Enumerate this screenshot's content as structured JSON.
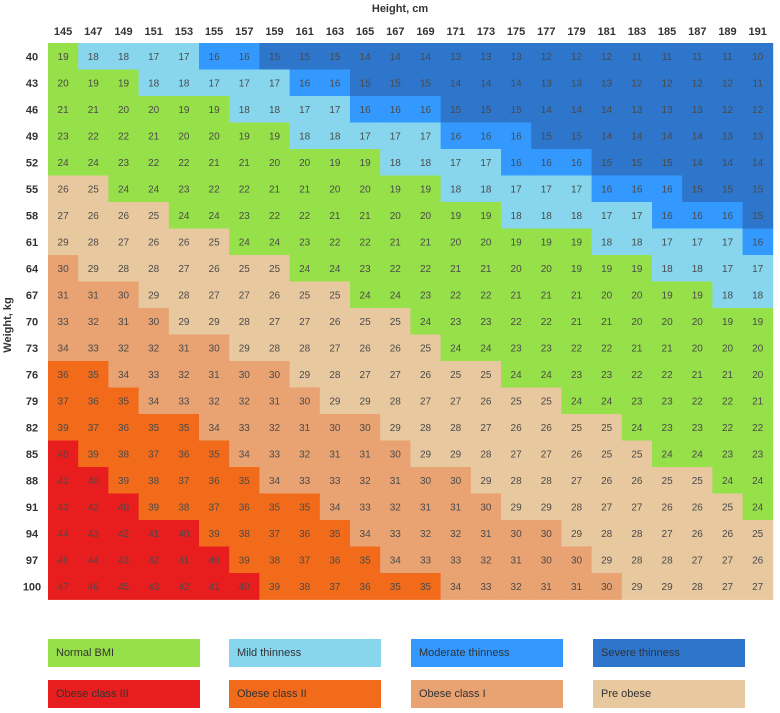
{
  "chart_data": {
    "type": "heatmap",
    "title": "",
    "xlabel": "Height, cm",
    "ylabel": "Weight, kg",
    "x": [
      145,
      147,
      149,
      151,
      153,
      155,
      157,
      159,
      161,
      163,
      165,
      167,
      169,
      171,
      173,
      175,
      177,
      179,
      181,
      183,
      185,
      187,
      189,
      191
    ],
    "y": [
      40,
      43,
      46,
      49,
      52,
      55,
      58,
      61,
      64,
      67,
      70,
      73,
      76,
      79,
      82,
      85,
      88,
      91,
      94,
      97,
      100
    ],
    "values": [
      [
        19,
        18,
        18,
        17,
        17,
        16,
        16,
        15,
        15,
        15,
        14,
        14,
        14,
        13,
        13,
        13,
        12,
        12,
        12,
        11,
        11,
        11,
        11,
        10
      ],
      [
        20,
        19,
        19,
        18,
        18,
        17,
        17,
        17,
        16,
        16,
        15,
        15,
        15,
        14,
        14,
        14,
        13,
        13,
        13,
        12,
        12,
        12,
        12,
        11
      ],
      [
        21,
        21,
        20,
        20,
        19,
        19,
        18,
        18,
        17,
        17,
        16,
        16,
        16,
        15,
        15,
        15,
        14,
        14,
        14,
        13,
        13,
        13,
        12,
        12
      ],
      [
        23,
        22,
        22,
        21,
        20,
        20,
        19,
        19,
        18,
        18,
        17,
        17,
        17,
        16,
        16,
        16,
        15,
        15,
        14,
        14,
        14,
        14,
        13,
        13
      ],
      [
        24,
        24,
        23,
        22,
        22,
        21,
        21,
        20,
        20,
        19,
        19,
        18,
        18,
        17,
        17,
        16,
        16,
        16,
        15,
        15,
        15,
        14,
        14,
        14
      ],
      [
        26,
        25,
        24,
        24,
        23,
        22,
        22,
        21,
        21,
        20,
        20,
        19,
        19,
        18,
        18,
        17,
        17,
        17,
        16,
        16,
        16,
        15,
        15,
        15
      ],
      [
        27,
        26,
        26,
        25,
        24,
        24,
        23,
        22,
        22,
        21,
        21,
        20,
        20,
        19,
        19,
        18,
        18,
        18,
        17,
        17,
        16,
        16,
        16,
        15
      ],
      [
        29,
        28,
        27,
        26,
        26,
        25,
        24,
        24,
        23,
        22,
        22,
        21,
        21,
        20,
        20,
        19,
        19,
        19,
        18,
        18,
        17,
        17,
        17,
        16
      ],
      [
        30,
        29,
        28,
        28,
        27,
        26,
        25,
        25,
        24,
        24,
        23,
        22,
        22,
        21,
        21,
        20,
        20,
        19,
        19,
        19,
        18,
        18,
        17,
        17
      ],
      [
        31,
        31,
        30,
        29,
        28,
        27,
        27,
        26,
        25,
        25,
        24,
        24,
        23,
        22,
        22,
        21,
        21,
        21,
        20,
        20,
        19,
        19,
        18,
        18
      ],
      [
        33,
        32,
        31,
        30,
        29,
        29,
        28,
        27,
        27,
        26,
        25,
        25,
        24,
        23,
        23,
        22,
        22,
        21,
        21,
        20,
        20,
        20,
        19,
        19
      ],
      [
        34,
        33,
        32,
        32,
        31,
        30,
        29,
        28,
        28,
        27,
        26,
        26,
        25,
        24,
        24,
        23,
        23,
        22,
        22,
        21,
        21,
        20,
        20,
        20
      ],
      [
        36,
        35,
        34,
        33,
        32,
        31,
        30,
        30,
        29,
        28,
        27,
        27,
        26,
        25,
        25,
        24,
        24,
        23,
        23,
        22,
        22,
        21,
        21,
        20
      ],
      [
        37,
        36,
        35,
        34,
        33,
        32,
        32,
        31,
        30,
        29,
        29,
        28,
        27,
        27,
        26,
        25,
        25,
        24,
        24,
        23,
        23,
        22,
        22,
        21
      ],
      [
        39,
        37,
        36,
        35,
        35,
        34,
        33,
        32,
        31,
        30,
        30,
        29,
        28,
        28,
        27,
        26,
        26,
        25,
        25,
        24,
        23,
        23,
        22,
        22
      ],
      [
        40,
        39,
        38,
        37,
        36,
        35,
        34,
        33,
        32,
        31,
        31,
        30,
        29,
        29,
        28,
        27,
        27,
        26,
        25,
        25,
        24,
        24,
        23,
        23
      ],
      [
        41,
        40,
        39,
        38,
        37,
        36,
        35,
        34,
        33,
        33,
        32,
        31,
        30,
        30,
        29,
        28,
        28,
        27,
        26,
        26,
        25,
        25,
        24,
        24
      ],
      [
        43,
        42,
        40,
        39,
        38,
        37,
        36,
        35,
        35,
        34,
        33,
        32,
        31,
        31,
        30,
        29,
        29,
        28,
        27,
        27,
        26,
        26,
        25,
        24
      ],
      [
        44,
        43,
        42,
        41,
        40,
        39,
        38,
        37,
        36,
        35,
        34,
        33,
        32,
        32,
        31,
        30,
        30,
        29,
        28,
        28,
        27,
        26,
        26,
        25
      ],
      [
        46,
        44,
        43,
        42,
        41,
        40,
        39,
        38,
        37,
        36,
        35,
        34,
        33,
        33,
        32,
        31,
        30,
        30,
        29,
        28,
        28,
        27,
        27,
        26
      ],
      [
        47,
        46,
        45,
        43,
        42,
        41,
        40,
        39,
        38,
        37,
        36,
        35,
        35,
        34,
        33,
        32,
        31,
        31,
        30,
        29,
        29,
        28,
        27,
        27
      ]
    ],
    "categories": [
      {
        "name": "Normal BMI",
        "min": 18.5,
        "max": 24.9,
        "color": "#96e04a"
      },
      {
        "name": "Mild thinness",
        "min": 17,
        "max": 18.49,
        "color": "#87d6ee"
      },
      {
        "name": "Moderate thinness",
        "min": 16,
        "max": 16.99,
        "color": "#3399ff"
      },
      {
        "name": "Severe thinness",
        "min": 0,
        "max": 15.99,
        "color": "#2e75cc"
      },
      {
        "name": "Obese class III",
        "min": 40,
        "max": 100,
        "color": "#e81e1e"
      },
      {
        "name": "Obese class II",
        "min": 35,
        "max": 39.99,
        "color": "#f26b1a"
      },
      {
        "name": "Obese class I",
        "min": 30,
        "max": 34.99,
        "color": "#e9a272"
      },
      {
        "name": "Pre obese",
        "min": 25,
        "max": 29.99,
        "color": "#e8c89e"
      }
    ]
  }
}
